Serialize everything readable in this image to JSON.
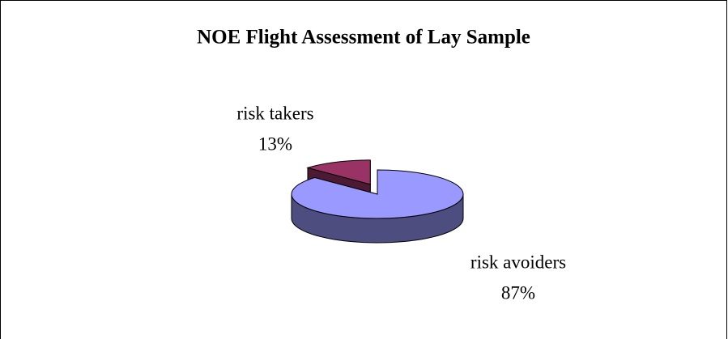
{
  "chart_data": {
    "type": "pie",
    "title": "NOE Flight Assessment of Lay Sample",
    "categories": [
      "risk takers",
      "risk avoiders"
    ],
    "values": [
      13,
      87
    ],
    "value_labels": [
      "13%",
      "87%"
    ],
    "colors": [
      "#993366",
      "#9999ff"
    ],
    "side_colors": [
      "#4d1a33",
      "#4d4d80"
    ],
    "three_d": true
  }
}
